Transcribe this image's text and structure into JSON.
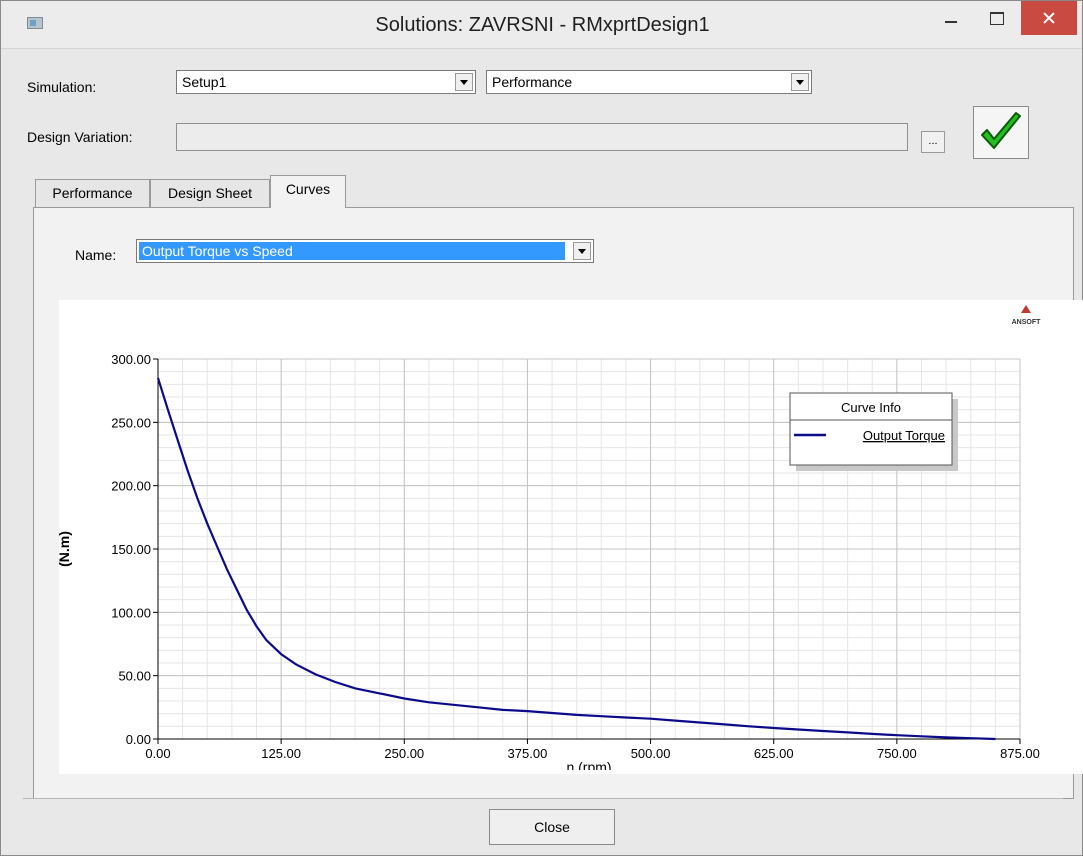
{
  "window": {
    "title": "Solutions: ZAVRSNI - RMxprtDesign1"
  },
  "form": {
    "simulation_label": "Simulation:",
    "simulation_value": "Setup1",
    "solution_type_value": "Performance",
    "design_variation_label": "Design Variation:",
    "design_variation_value": "",
    "ellipsis_label": "..."
  },
  "tabs": [
    {
      "label": "Performance"
    },
    {
      "label": "Design Sheet"
    },
    {
      "label": "Curves",
      "active": true
    }
  ],
  "curves": {
    "name_label": "Name:",
    "name_value": "Output Torque vs Speed"
  },
  "chart_data": {
    "type": "line",
    "logo_text": "ANSOFT",
    "xlabel": "n (rpm)",
    "ylabel": "(N.m)",
    "xlim": [
      0,
      875
    ],
    "ylim": [
      0,
      300
    ],
    "x_ticks": [
      "0.00",
      "125.00",
      "250.00",
      "375.00",
      "500.00",
      "625.00",
      "750.00",
      "875.00"
    ],
    "y_ticks": [
      "0.00",
      "50.00",
      "100.00",
      "150.00",
      "200.00",
      "250.00",
      "300.00"
    ],
    "grid": true,
    "legend": {
      "title": "Curve Info",
      "placement": "top-right"
    },
    "series": [
      {
        "name": "Output Torque",
        "color": "#0b0b8a",
        "x": [
          0,
          10,
          20,
          30,
          40,
          50,
          60,
          70,
          80,
          90,
          100,
          110,
          125,
          140,
          160,
          180,
          200,
          225,
          250,
          275,
          300,
          325,
          350,
          375,
          400,
          425,
          450,
          475,
          500,
          525,
          550,
          575,
          600,
          625,
          650,
          675,
          700,
          725,
          750,
          775,
          800,
          825,
          850
        ],
        "y": [
          285,
          260,
          236,
          212,
          190,
          170,
          152,
          134,
          118,
          102,
          89,
          78,
          67,
          59,
          51,
          45,
          40,
          36,
          32,
          29,
          27,
          25,
          23,
          22,
          20.5,
          19,
          18,
          17,
          16,
          14.5,
          13,
          11.5,
          10,
          8.7,
          7.5,
          6.3,
          5.2,
          4,
          3,
          2.1,
          1.3,
          0.6,
          0
        ]
      }
    ]
  },
  "footer": {
    "close_label": "Close"
  },
  "colors": {
    "accent": "#3399ff",
    "close_button": "#c84a40",
    "check": "#22c01e"
  }
}
